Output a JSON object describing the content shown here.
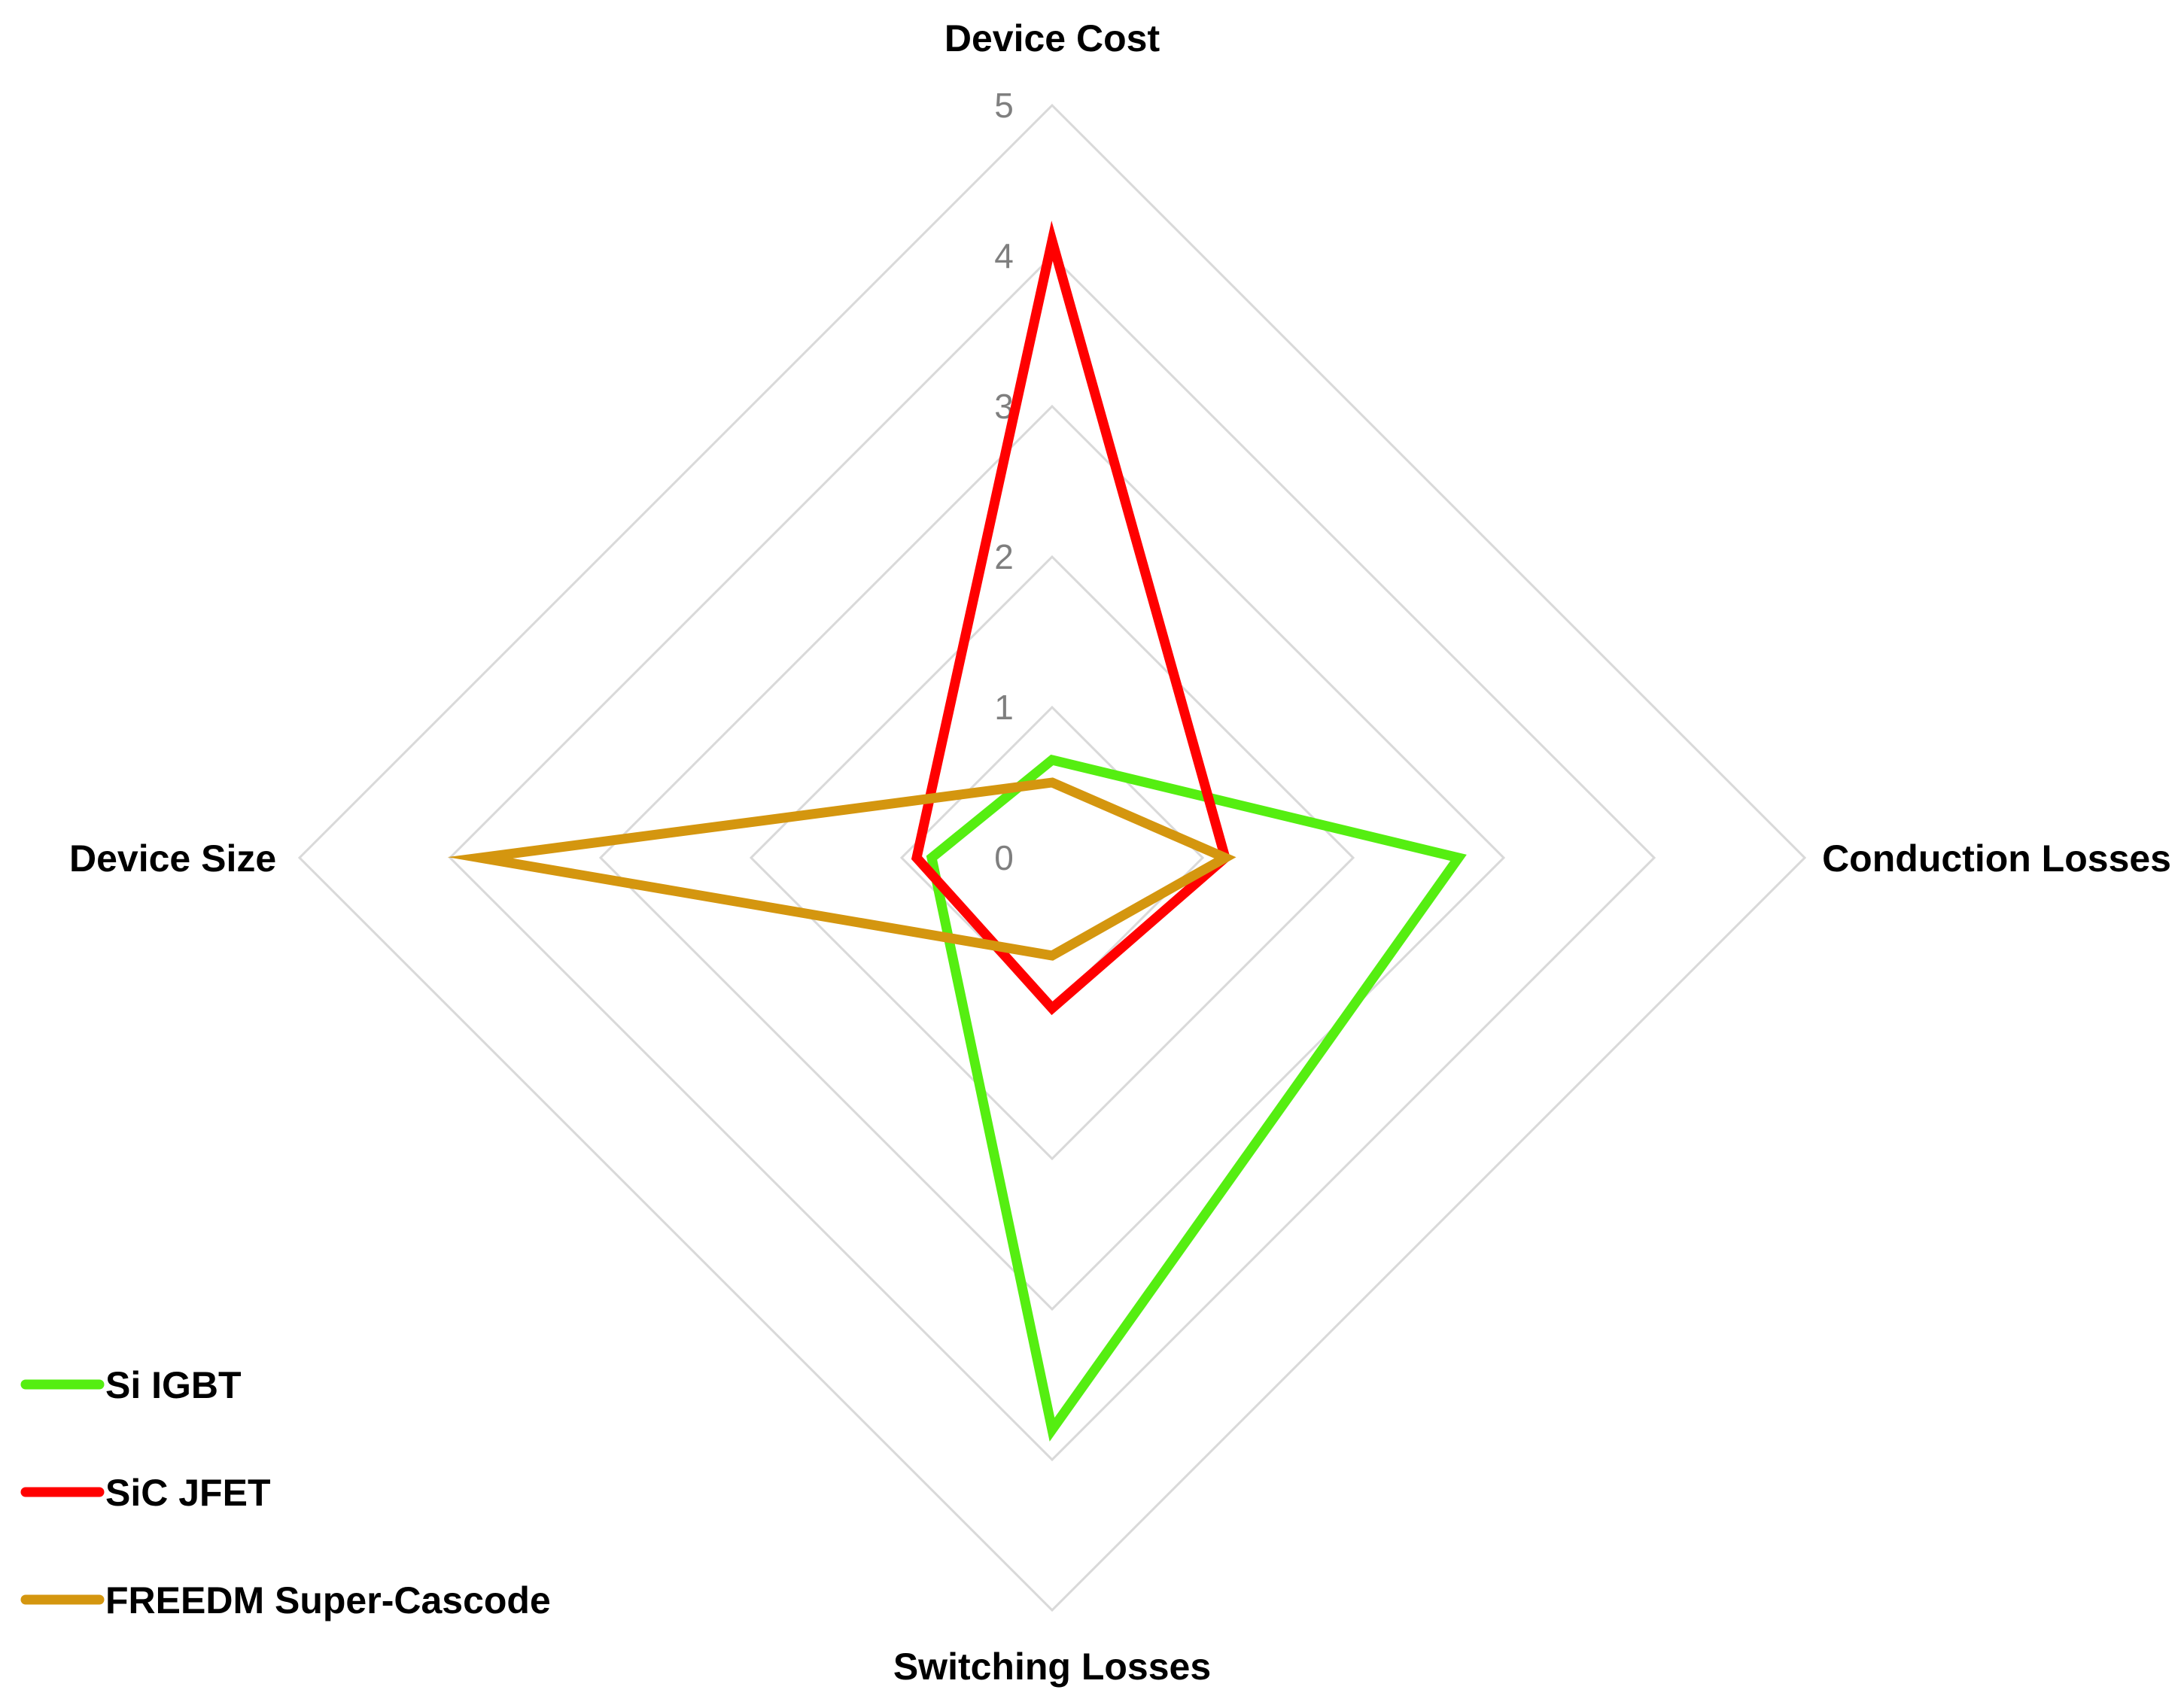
{
  "chart_data": {
    "type": "radar",
    "axes": [
      "Device Cost",
      "Conduction Losses",
      "Switching Losses",
      "Device Size"
    ],
    "rlim": [
      0,
      5
    ],
    "ticks": [
      "0",
      "1",
      "2",
      "3",
      "4",
      "5"
    ],
    "grid": true,
    "legend_position": "bottom-left",
    "series": [
      {
        "name": "Si IGBT",
        "color": "#55ee11",
        "values": [
          0.65,
          2.7,
          3.8,
          0.8
        ]
      },
      {
        "name": "SiC JFET",
        "color": "#ff0000",
        "values": [
          4.1,
          1.15,
          1.0,
          0.9
        ]
      },
      {
        "name": "FREEDM Super-Cascode",
        "color": "#d4960f",
        "values": [
          0.5,
          1.15,
          0.65,
          3.8
        ]
      }
    ]
  }
}
